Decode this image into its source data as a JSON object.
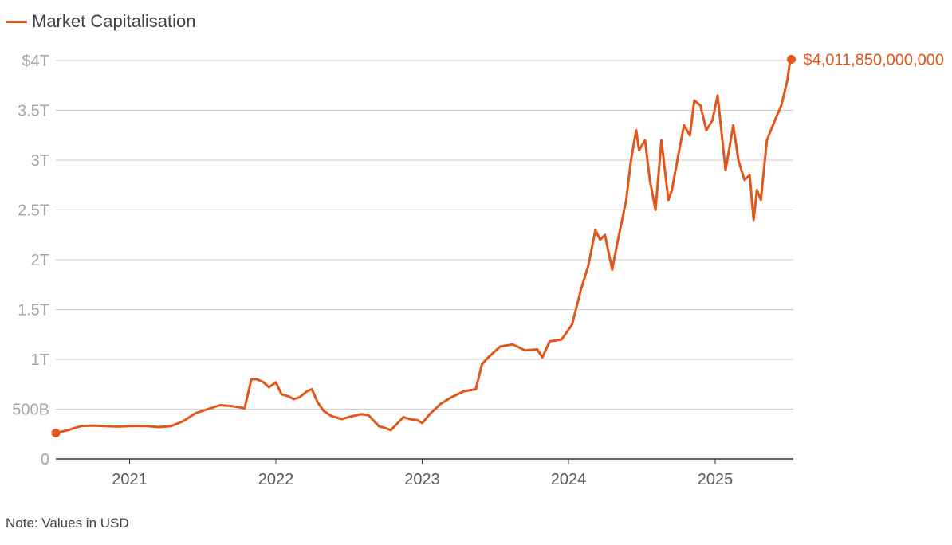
{
  "legend": {
    "label": "Market Capitalisation"
  },
  "note": "Note: Values in USD",
  "chart_data": {
    "type": "line",
    "title": "",
    "xlabel": "",
    "ylabel": "",
    "ylim": [
      0,
      4000000000000
    ],
    "xlim": [
      "2020-07-01",
      "2025-07-15"
    ],
    "grid": true,
    "legend_position": "top-left",
    "accent_color": "#e2561a",
    "y_ticks": [
      {
        "value": 0,
        "label": "0"
      },
      {
        "value": 500000000000,
        "label": "500B"
      },
      {
        "value": 1000000000000,
        "label": "1T"
      },
      {
        "value": 1500000000000,
        "label": "1.5T"
      },
      {
        "value": 2000000000000,
        "label": "2T"
      },
      {
        "value": 2500000000000,
        "label": "2.5T"
      },
      {
        "value": 3000000000000,
        "label": "3T"
      },
      {
        "value": 3500000000000,
        "label": "3.5T"
      },
      {
        "value": 4000000000000,
        "label": "$4T"
      }
    ],
    "x_ticks": [
      {
        "value": "2021-01-01",
        "label": "2021"
      },
      {
        "value": "2022-01-01",
        "label": "2022"
      },
      {
        "value": "2023-01-01",
        "label": "2023"
      },
      {
        "value": "2024-01-01",
        "label": "2024"
      },
      {
        "value": "2025-01-01",
        "label": "2025"
      }
    ],
    "end_label": "$4,011,850,000,000",
    "series": [
      {
        "name": "Market Capitalisation",
        "x": [
          "2020-07-01",
          "2020-08-01",
          "2020-09-01",
          "2020-10-01",
          "2020-11-01",
          "2020-12-01",
          "2021-01-01",
          "2021-02-15",
          "2021-03-15",
          "2021-04-15",
          "2021-05-15",
          "2021-06-15",
          "2021-07-15",
          "2021-08-15",
          "2021-09-15",
          "2021-10-15",
          "2021-11-01",
          "2021-11-15",
          "2021-12-01",
          "2021-12-15",
          "2022-01-01",
          "2022-01-15",
          "2022-02-01",
          "2022-02-15",
          "2022-03-01",
          "2022-03-20",
          "2022-04-01",
          "2022-04-15",
          "2022-05-01",
          "2022-05-20",
          "2022-06-15",
          "2022-07-01",
          "2022-08-01",
          "2022-08-20",
          "2022-09-15",
          "2022-10-01",
          "2022-10-15",
          "2022-11-01",
          "2022-11-15",
          "2022-12-01",
          "2022-12-20",
          "2023-01-01",
          "2023-01-20",
          "2023-02-15",
          "2023-03-15",
          "2023-04-15",
          "2023-05-15",
          "2023-05-30",
          "2023-06-15",
          "2023-07-15",
          "2023-08-15",
          "2023-09-15",
          "2023-10-15",
          "2023-10-28",
          "2023-11-15",
          "2023-12-15",
          "2024-01-10",
          "2024-02-01",
          "2024-02-20",
          "2024-03-08",
          "2024-03-20",
          "2024-04-01",
          "2024-04-19",
          "2024-05-01",
          "2024-05-24",
          "2024-06-05",
          "2024-06-18",
          "2024-06-25",
          "2024-07-10",
          "2024-07-22",
          "2024-08-05",
          "2024-08-20",
          "2024-09-06",
          "2024-09-15",
          "2024-10-01",
          "2024-10-15",
          "2024-10-30",
          "2024-11-10",
          "2024-11-25",
          "2024-12-10",
          "2024-12-25",
          "2025-01-07",
          "2025-01-27",
          "2025-02-15",
          "2025-02-28",
          "2025-03-15",
          "2025-03-28",
          "2025-04-07",
          "2025-04-15",
          "2025-04-25",
          "2025-05-10",
          "2025-05-30",
          "2025-06-15",
          "2025-06-30",
          "2025-07-05",
          "2025-07-10"
        ],
        "values": [
          260000000000,
          290000000000,
          330000000000,
          335000000000,
          330000000000,
          325000000000,
          330000000000,
          330000000000,
          320000000000,
          330000000000,
          380000000000,
          460000000000,
          500000000000,
          540000000000,
          530000000000,
          510000000000,
          800000000000,
          800000000000,
          770000000000,
          720000000000,
          770000000000,
          650000000000,
          630000000000,
          600000000000,
          620000000000,
          680000000000,
          700000000000,
          570000000000,
          480000000000,
          430000000000,
          400000000000,
          420000000000,
          450000000000,
          440000000000,
          330000000000,
          310000000000,
          290000000000,
          360000000000,
          420000000000,
          400000000000,
          390000000000,
          360000000000,
          450000000000,
          550000000000,
          620000000000,
          680000000000,
          700000000000,
          950000000000,
          1020000000000,
          1130000000000,
          1150000000000,
          1090000000000,
          1100000000000,
          1020000000000,
          1180000000000,
          1200000000000,
          1350000000000,
          1700000000000,
          1950000000000,
          2300000000000,
          2200000000000,
          2250000000000,
          1900000000000,
          2150000000000,
          2600000000000,
          3000000000000,
          3300000000000,
          3100000000000,
          3200000000000,
          2800000000000,
          2500000000000,
          3200000000000,
          2600000000000,
          2700000000000,
          3050000000000,
          3350000000000,
          3250000000000,
          3600000000000,
          3550000000000,
          3300000000000,
          3400000000000,
          3650000000000,
          2900000000000,
          3350000000000,
          3000000000000,
          2800000000000,
          2850000000000,
          2400000000000,
          2700000000000,
          2600000000000,
          3200000000000,
          3400000000000,
          3550000000000,
          3800000000000,
          3950000000000,
          4011850000000
        ]
      }
    ]
  }
}
